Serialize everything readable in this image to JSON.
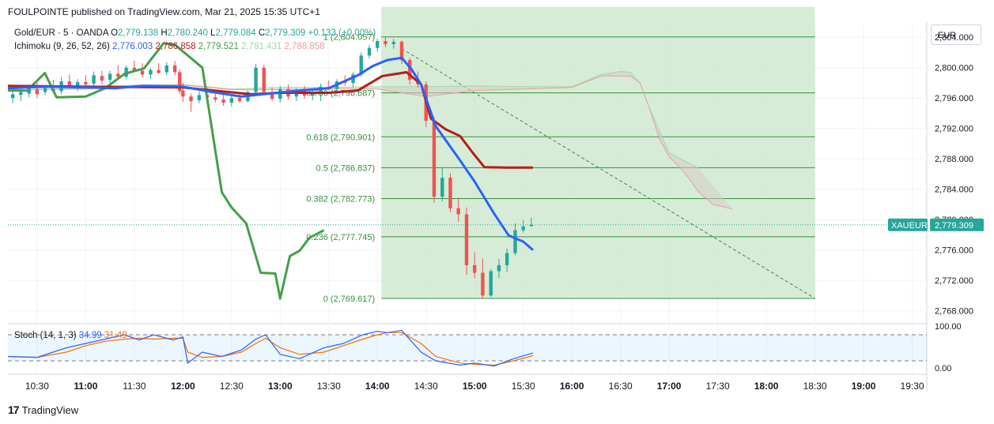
{
  "header": {
    "publisher_line": "FOULPOINTE published on TradingView.com, Mar 21, 2025 15:35 UTC+1"
  },
  "branding": {
    "logo_text": "TradingView",
    "logo_mark": "17"
  },
  "currency_label": "EUR",
  "legend": {
    "symbol_line": "Gold/EUR · 5 · OANDA",
    "ohlc": [
      {
        "k": "O",
        "v": "2,779.138"
      },
      {
        "k": "H",
        "v": "2,780.240"
      },
      {
        "k": "L",
        "v": "2,779.084"
      },
      {
        "k": "C",
        "v": "2,779.309"
      }
    ],
    "change": "+0.133 (+0.00%)",
    "ichimoku_label": "Ichimoku (9, 26, 52, 26)",
    "ichimoku_values": [
      {
        "v": "2,776.003",
        "color": "#2962ff"
      },
      {
        "v": "2,786.858",
        "color": "#b71c1c"
      },
      {
        "v": "2,779.521",
        "color": "#43a047"
      },
      {
        "v": "2,781.431",
        "color": "#a5d6a7"
      },
      {
        "v": "2,788.858",
        "color": "#ef9a9a"
      }
    ],
    "stoch_label": "Stoch (14, 1, 3)",
    "stoch_values": [
      {
        "v": "34.99",
        "color": "#2962ff"
      },
      {
        "v": "31.49",
        "color": "#ff6d00"
      }
    ]
  },
  "price_tag": {
    "symbol": "XAUEUR",
    "price": "2,779.309"
  },
  "colors": {
    "up": "#26a69a",
    "down": "#ef5350",
    "tenkan": "#2962ff",
    "kijun": "#b71c1c",
    "chikou": "#43a047",
    "fib_line": "#388e3c",
    "fib_zone": "#c8e6c9",
    "fib_label": "#388e3c",
    "cloud_fill": "#d7ccc8",
    "cloud_line": "#e6a29a",
    "stoch_k": "#2962ff",
    "stoch_d": "#ff6d00"
  },
  "chart_data": {
    "type": "line",
    "y_axis": {
      "min": 2766.5,
      "max": 2806.0,
      "ticks": [
        "2,804.000",
        "2,800.000",
        "2,796.000",
        "2,792.000",
        "2,788.000",
        "2,784.000",
        "2,780.000",
        "2,776.000",
        "2,772.000",
        "2,768.000"
      ],
      "tick_values": [
        2804,
        2800,
        2796,
        2792,
        2788,
        2784,
        2780,
        2776,
        2772,
        2768
      ]
    },
    "x_axis": {
      "labels": [
        "10:30",
        "11:00",
        "11:30",
        "12:00",
        "12:30",
        "13:00",
        "13:30",
        "14:00",
        "14:30",
        "15:00",
        "15:30",
        "16:00",
        "16:30",
        "17:00",
        "17:30",
        "18:00",
        "18:30",
        "19:00",
        "19:30"
      ],
      "bold": [
        "11:00",
        "12:00",
        "13:00",
        "14:00",
        "15:00",
        "16:00",
        "17:00",
        "18:00",
        "19:00"
      ],
      "time_min": 10.2,
      "time_max": 19.65
    },
    "fibonacci": {
      "from_time": 14.04,
      "to_time": 18.5,
      "levels": [
        {
          "ratio": "1",
          "price": 2804.057,
          "label": "1 (2,804.057)"
        },
        {
          "ratio": "0.786",
          "price": 2796.687,
          "label": "0.786 (2,796.687)"
        },
        {
          "ratio": "0.618",
          "price": 2790.901,
          "label": "0.618 (2,790.901)"
        },
        {
          "ratio": "0.5",
          "price": 2786.837,
          "label": "0.5 (2,786.837)"
        },
        {
          "ratio": "0.382",
          "price": 2782.773,
          "label": "0.382 (2,782.773)"
        },
        {
          "ratio": "0.236",
          "price": 2777.745,
          "label": "0.236 (2,777.745)"
        },
        {
          "ratio": "0",
          "price": 2769.617,
          "label": "0 (2,769.617)"
        }
      ]
    },
    "trend_line": {
      "x": [
        14.25,
        18.5
      ],
      "y": [
        2802.5,
        2769.617
      ]
    },
    "candles": [
      {
        "t": 10.25,
        "o": 2796.0,
        "h": 2797.0,
        "l": 2795.3,
        "c": 2796.5
      },
      {
        "t": 10.333,
        "o": 2796.4,
        "h": 2797.2,
        "l": 2795.6,
        "c": 2796.8
      },
      {
        "t": 10.417,
        "o": 2796.6,
        "h": 2797.8,
        "l": 2796.1,
        "c": 2797.5
      },
      {
        "t": 10.5,
        "o": 2797.2,
        "h": 2798.0,
        "l": 2796.0,
        "c": 2796.5
      },
      {
        "t": 10.583,
        "o": 2796.8,
        "h": 2797.6,
        "l": 2796.4,
        "c": 2797.3
      },
      {
        "t": 10.667,
        "o": 2797.2,
        "h": 2798.4,
        "l": 2796.8,
        "c": 2796.9
      },
      {
        "t": 10.75,
        "o": 2796.9,
        "h": 2798.8,
        "l": 2796.5,
        "c": 2798.2
      },
      {
        "t": 10.833,
        "o": 2798.2,
        "h": 2799.1,
        "l": 2797.4,
        "c": 2797.5
      },
      {
        "t": 10.917,
        "o": 2797.5,
        "h": 2798.5,
        "l": 2796.9,
        "c": 2798.1
      },
      {
        "t": 11.0,
        "o": 2798.1,
        "h": 2799.0,
        "l": 2797.3,
        "c": 2797.8
      },
      {
        "t": 11.083,
        "o": 2797.9,
        "h": 2799.5,
        "l": 2797.5,
        "c": 2799.0
      },
      {
        "t": 11.167,
        "o": 2798.9,
        "h": 2799.6,
        "l": 2797.8,
        "c": 2798.3
      },
      {
        "t": 11.25,
        "o": 2798.4,
        "h": 2799.6,
        "l": 2798.0,
        "c": 2799.2
      },
      {
        "t": 11.333,
        "o": 2799.2,
        "h": 2800.3,
        "l": 2798.4,
        "c": 2798.8
      },
      {
        "t": 11.417,
        "o": 2798.8,
        "h": 2800.3,
        "l": 2798.5,
        "c": 2800.0
      },
      {
        "t": 11.5,
        "o": 2800.0,
        "h": 2800.9,
        "l": 2799.4,
        "c": 2799.6
      },
      {
        "t": 11.583,
        "o": 2799.6,
        "h": 2800.6,
        "l": 2798.7,
        "c": 2799.1
      },
      {
        "t": 11.667,
        "o": 2799.1,
        "h": 2800.0,
        "l": 2798.5,
        "c": 2799.7
      },
      {
        "t": 11.75,
        "o": 2799.7,
        "h": 2800.6,
        "l": 2799.2,
        "c": 2799.3
      },
      {
        "t": 11.833,
        "o": 2799.4,
        "h": 2800.7,
        "l": 2799.0,
        "c": 2800.3
      },
      {
        "t": 11.917,
        "o": 2800.3,
        "h": 2800.9,
        "l": 2799.0,
        "c": 2799.4
      },
      {
        "t": 11.967,
        "o": 2799.4,
        "h": 2799.8,
        "l": 2796.5,
        "c": 2796.9
      },
      {
        "t": 12.0,
        "o": 2797.0,
        "h": 2798.0,
        "l": 2795.5,
        "c": 2796.2
      },
      {
        "t": 12.083,
        "o": 2796.2,
        "h": 2796.6,
        "l": 2794.2,
        "c": 2795.6
      },
      {
        "t": 12.167,
        "o": 2795.7,
        "h": 2796.9,
        "l": 2795.3,
        "c": 2796.4
      },
      {
        "t": 12.25,
        "o": 2796.4,
        "h": 2797.3,
        "l": 2795.9,
        "c": 2796.1
      },
      {
        "t": 12.333,
        "o": 2796.1,
        "h": 2796.6,
        "l": 2795.4,
        "c": 2795.8
      },
      {
        "t": 12.417,
        "o": 2795.8,
        "h": 2796.5,
        "l": 2795.0,
        "c": 2795.4
      },
      {
        "t": 12.5,
        "o": 2795.4,
        "h": 2796.3,
        "l": 2794.9,
        "c": 2796.0
      },
      {
        "t": 12.583,
        "o": 2796.0,
        "h": 2796.8,
        "l": 2795.4,
        "c": 2795.6
      },
      {
        "t": 12.667,
        "o": 2795.6,
        "h": 2797.0,
        "l": 2795.4,
        "c": 2796.8
      },
      {
        "t": 12.75,
        "o": 2796.8,
        "h": 2800.5,
        "l": 2796.6,
        "c": 2800.0
      },
      {
        "t": 12.833,
        "o": 2800.0,
        "h": 2800.4,
        "l": 2796.5,
        "c": 2796.8
      },
      {
        "t": 12.917,
        "o": 2796.8,
        "h": 2797.4,
        "l": 2795.6,
        "c": 2795.9
      },
      {
        "t": 13.0,
        "o": 2795.9,
        "h": 2797.6,
        "l": 2795.4,
        "c": 2797.2
      },
      {
        "t": 13.083,
        "o": 2797.2,
        "h": 2797.8,
        "l": 2795.8,
        "c": 2796.2
      },
      {
        "t": 13.167,
        "o": 2796.2,
        "h": 2797.3,
        "l": 2795.6,
        "c": 2796.9
      },
      {
        "t": 13.25,
        "o": 2796.9,
        "h": 2797.6,
        "l": 2795.9,
        "c": 2796.3
      },
      {
        "t": 13.333,
        "o": 2796.3,
        "h": 2797.2,
        "l": 2795.7,
        "c": 2796.8
      },
      {
        "t": 13.417,
        "o": 2796.8,
        "h": 2797.9,
        "l": 2795.6,
        "c": 2797.5
      },
      {
        "t": 13.5,
        "o": 2797.5,
        "h": 2798.3,
        "l": 2797.0,
        "c": 2797.2
      },
      {
        "t": 13.583,
        "o": 2797.2,
        "h": 2798.5,
        "l": 2796.5,
        "c": 2798.2
      },
      {
        "t": 13.667,
        "o": 2798.2,
        "h": 2799.0,
        "l": 2797.6,
        "c": 2798.0
      },
      {
        "t": 13.75,
        "o": 2798.0,
        "h": 2799.4,
        "l": 2797.4,
        "c": 2799.1
      },
      {
        "t": 13.833,
        "o": 2799.1,
        "h": 2802.0,
        "l": 2798.8,
        "c": 2801.6
      },
      {
        "t": 13.917,
        "o": 2801.6,
        "h": 2803.0,
        "l": 2801.2,
        "c": 2802.6
      },
      {
        "t": 14.0,
        "o": 2802.6,
        "h": 2803.8,
        "l": 2802.1,
        "c": 2803.5
      },
      {
        "t": 14.083,
        "o": 2803.5,
        "h": 2804.0,
        "l": 2802.7,
        "c": 2803.1
      },
      {
        "t": 14.167,
        "o": 2803.1,
        "h": 2803.8,
        "l": 2802.5,
        "c": 2803.4
      },
      {
        "t": 14.25,
        "o": 2803.4,
        "h": 2803.6,
        "l": 2800.5,
        "c": 2801.0
      },
      {
        "t": 14.333,
        "o": 2801.0,
        "h": 2801.3,
        "l": 2797.8,
        "c": 2798.4
      },
      {
        "t": 14.417,
        "o": 2798.4,
        "h": 2799.5,
        "l": 2797.4,
        "c": 2797.8
      },
      {
        "t": 14.5,
        "o": 2797.8,
        "h": 2798.2,
        "l": 2792.2,
        "c": 2793.0
      },
      {
        "t": 14.583,
        "o": 2793.0,
        "h": 2793.5,
        "l": 2782.2,
        "c": 2783.0
      },
      {
        "t": 14.667,
        "o": 2783.0,
        "h": 2786.9,
        "l": 2782.4,
        "c": 2785.5
      },
      {
        "t": 14.75,
        "o": 2785.5,
        "h": 2786.1,
        "l": 2781.0,
        "c": 2781.5
      },
      {
        "t": 14.833,
        "o": 2781.5,
        "h": 2782.9,
        "l": 2779.7,
        "c": 2780.7
      },
      {
        "t": 14.917,
        "o": 2780.7,
        "h": 2781.6,
        "l": 2772.7,
        "c": 2774.0
      },
      {
        "t": 15.0,
        "o": 2774.0,
        "h": 2775.7,
        "l": 2772.3,
        "c": 2773.0
      },
      {
        "t": 15.083,
        "o": 2773.0,
        "h": 2774.9,
        "l": 2769.6,
        "c": 2770.0
      },
      {
        "t": 15.167,
        "o": 2770.0,
        "h": 2773.5,
        "l": 2769.8,
        "c": 2773.2
      },
      {
        "t": 15.25,
        "o": 2773.2,
        "h": 2774.8,
        "l": 2772.3,
        "c": 2774.0
      },
      {
        "t": 15.333,
        "o": 2774.0,
        "h": 2776.2,
        "l": 2773.1,
        "c": 2775.6
      },
      {
        "t": 15.417,
        "o": 2775.6,
        "h": 2779.5,
        "l": 2775.3,
        "c": 2778.6
      },
      {
        "t": 15.5,
        "o": 2778.6,
        "h": 2779.9,
        "l": 2778.3,
        "c": 2779.1
      },
      {
        "t": 15.583,
        "o": 2779.138,
        "h": 2780.24,
        "l": 2779.084,
        "c": 2779.309
      }
    ],
    "tenkan": {
      "x": [
        10.2,
        10.6,
        11.0,
        11.3,
        11.6,
        12.0,
        12.3,
        12.6,
        12.9,
        13.2,
        13.5,
        13.8,
        13.95,
        14.1,
        14.25,
        14.35,
        14.45,
        14.6,
        14.85,
        15.0,
        15.2,
        15.35,
        15.5,
        15.6
      ],
      "y": [
        2797.3,
        2797.5,
        2797.4,
        2797.3,
        2797.6,
        2797.5,
        2796.8,
        2796.2,
        2796.6,
        2797.0,
        2797.3,
        2799.0,
        2800.2,
        2801.0,
        2801.3,
        2799.8,
        2797.8,
        2792.3,
        2787.8,
        2785.0,
        2780.8,
        2777.9,
        2777.1,
        2776.0
      ]
    },
    "kijun": {
      "x": [
        10.2,
        11.0,
        12.0,
        12.7,
        13.0,
        13.5,
        13.8,
        14.05,
        14.3,
        14.45,
        14.55,
        14.7,
        14.85,
        14.98,
        15.1,
        15.3,
        15.6
      ],
      "y": [
        2797.6,
        2797.5,
        2797.4,
        2796.5,
        2796.7,
        2796.7,
        2797.0,
        2798.9,
        2799.4,
        2797.8,
        2793.3,
        2791.9,
        2791.0,
        2788.8,
        2786.9,
        2786.858,
        2786.858
      ]
    },
    "chikou": {
      "x": [
        10.2,
        10.4,
        10.58,
        10.7,
        11.0,
        11.2,
        11.4,
        11.6,
        11.8,
        11.92,
        12.05,
        12.2,
        12.4,
        12.5,
        12.65,
        12.8,
        12.95,
        13.0,
        13.1,
        13.2,
        13.3,
        13.45
      ],
      "y": [
        2797.0,
        2797.0,
        2799.3,
        2796.1,
        2796.2,
        2797.3,
        2799.2,
        2799.9,
        2803.2,
        2803.0,
        2801.6,
        2800.0,
        2783.6,
        2781.6,
        2779.5,
        2773.0,
        2772.9,
        2769.6,
        2775.2,
        2775.9,
        2777.6,
        2778.6
      ]
    },
    "cloud_a": {
      "x": [
        10.4,
        11.0,
        11.5,
        12.0,
        12.5,
        13.0,
        13.5,
        14.0,
        14.5,
        15.0,
        15.5,
        16.0,
        16.3,
        16.5,
        16.6,
        16.7,
        16.8,
        17.0,
        17.3
      ],
      "y": [
        2797.1,
        2797.3,
        2797.7,
        2797.8,
        2797.2,
        2797.4,
        2797.4,
        2797.5,
        2797.5,
        2797.6,
        2797.5,
        2797.5,
        2799.1,
        2799.5,
        2799.4,
        2798.0,
        2794.6,
        2788.8,
        2786.8
      ]
    },
    "cloud_b": {
      "x": [
        10.4,
        11.0,
        11.5,
        12.0,
        12.5,
        13.0,
        13.5,
        14.0,
        14.5,
        15.0,
        15.5,
        16.0,
        16.3,
        16.5,
        16.6,
        16.7,
        16.8,
        16.9,
        17.0,
        17.1,
        17.2,
        17.3,
        17.45,
        17.65
      ],
      "y": [
        2797.1,
        2797.2,
        2797.6,
        2797.7,
        2797.1,
        2797.1,
        2797.2,
        2797.2,
        2796.2,
        2797.0,
        2797.2,
        2797.4,
        2798.9,
        2798.9,
        2798.9,
        2798.0,
        2794.6,
        2790.6,
        2788.3,
        2787.0,
        2785.5,
        2783.7,
        2782.0,
        2781.4
      ]
    },
    "stochastic": {
      "levels": {
        "upper": 80,
        "lower": 20
      },
      "axis_ticks": [
        "100.00",
        "0.00"
      ],
      "k": {
        "x": [
          10.2,
          10.5,
          10.8,
          11.0,
          11.2,
          11.4,
          11.55,
          11.7,
          11.9,
          12.0,
          12.05,
          12.2,
          12.4,
          12.6,
          12.75,
          12.85,
          13.0,
          13.2,
          13.45,
          13.65,
          13.85,
          14.0,
          14.1,
          14.25,
          14.45,
          14.6,
          14.85,
          15.0,
          15.2,
          15.4,
          15.6
        ],
        "k_y": [
          30,
          28,
          50,
          60,
          70,
          80,
          68,
          80,
          68,
          75,
          15,
          40,
          30,
          45,
          70,
          80,
          35,
          25,
          50,
          60,
          80,
          88,
          85,
          90,
          40,
          20,
          10,
          15,
          8,
          25,
          38
        ]
      },
      "d": {
        "x": [
          10.2,
          10.5,
          10.8,
          11.0,
          11.2,
          11.4,
          11.55,
          11.7,
          11.9,
          12.0,
          12.05,
          12.2,
          12.4,
          12.6,
          12.75,
          12.85,
          13.0,
          13.2,
          13.45,
          13.65,
          13.85,
          14.0,
          14.1,
          14.25,
          14.45,
          14.6,
          14.85,
          15.0,
          15.2,
          15.4,
          15.6
        ],
        "d_y": [
          30,
          28,
          40,
          55,
          65,
          70,
          72,
          70,
          72,
          72,
          40,
          28,
          30,
          40,
          60,
          72,
          50,
          35,
          40,
          55,
          70,
          80,
          85,
          85,
          60,
          30,
          15,
          12,
          10,
          20,
          32
        ]
      }
    }
  }
}
